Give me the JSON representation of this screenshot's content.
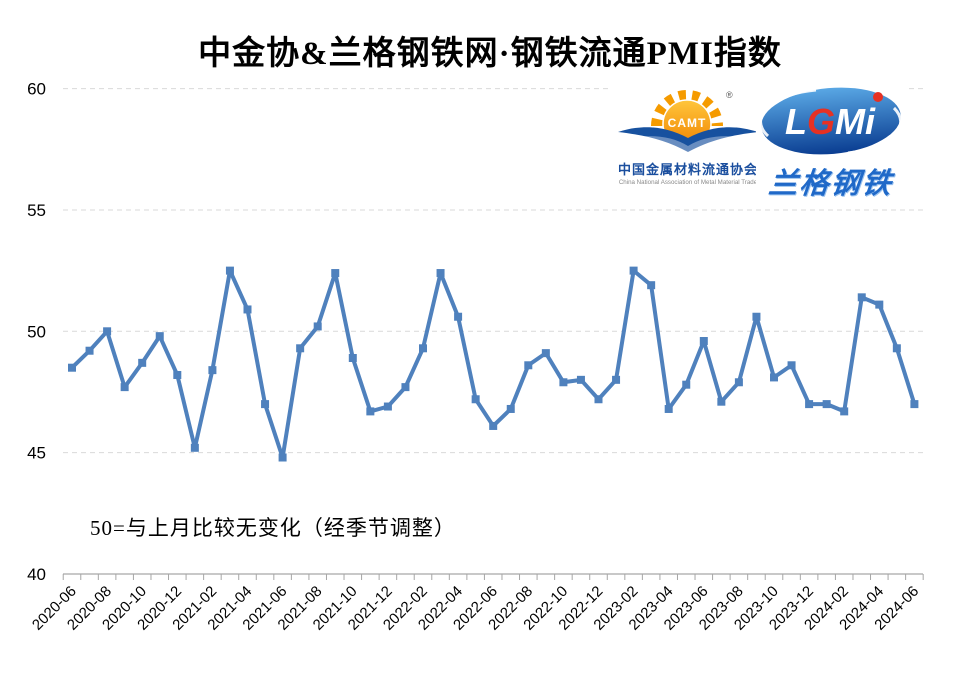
{
  "title": "中金协&兰格钢铁网·钢铁流通PMI指数",
  "annotation": "50=与上月比较无变化（经季节调整）",
  "logos": {
    "camt": {
      "abbr": "CAMT",
      "reg_mark": "®",
      "name_cn": "中国金属材料流通协会",
      "name_en": "China National Association of Metal Material Trade"
    },
    "lgmi": {
      "letter_l": "L",
      "letter_g": "G",
      "letter_mi": "Mi",
      "name_cn": "兰格钢铁"
    }
  },
  "colors": {
    "line": "#4F81BD",
    "grid": "#D9D9D9",
    "axis": "#A6A6A6",
    "text": "#000000"
  },
  "chart_data": {
    "type": "line",
    "title": "中金协&兰格钢铁网·钢铁流通PMI指数",
    "xlabel": "",
    "ylabel": "",
    "ylim": [
      40,
      60
    ],
    "y_ticks": [
      40,
      45,
      50,
      55,
      60
    ],
    "x_label_every": 2,
    "grid": "horizontal-dashed",
    "legend": "none",
    "marker": "square",
    "x": [
      "2020-06",
      "2020-07",
      "2020-08",
      "2020-09",
      "2020-10",
      "2020-11",
      "2020-12",
      "2021-01",
      "2021-02",
      "2021-03",
      "2021-04",
      "2021-05",
      "2021-06",
      "2021-07",
      "2021-08",
      "2021-09",
      "2021-10",
      "2021-11",
      "2021-12",
      "2022-01",
      "2022-02",
      "2022-03",
      "2022-04",
      "2022-05",
      "2022-06",
      "2022-07",
      "2022-08",
      "2022-09",
      "2022-10",
      "2022-11",
      "2022-12",
      "2023-01",
      "2023-02",
      "2023-03",
      "2023-04",
      "2023-05",
      "2023-06",
      "2023-07",
      "2023-08",
      "2023-09",
      "2023-10",
      "2023-11",
      "2023-12",
      "2024-01",
      "2024-02",
      "2024-03",
      "2024-04",
      "2024-05",
      "2024-06"
    ],
    "series": [
      {
        "name": "钢铁流通PMI指数",
        "values": [
          48.5,
          49.2,
          50.0,
          47.7,
          48.7,
          49.8,
          48.2,
          45.2,
          48.4,
          52.5,
          50.9,
          47.0,
          44.8,
          49.3,
          50.2,
          52.4,
          48.9,
          46.7,
          46.9,
          47.7,
          49.3,
          52.4,
          50.6,
          47.2,
          46.1,
          46.8,
          48.6,
          49.1,
          47.9,
          48.0,
          47.2,
          48.0,
          52.5,
          51.9,
          46.8,
          47.8,
          49.6,
          47.1,
          47.9,
          50.6,
          48.1,
          48.6,
          47.0,
          47.0,
          46.7,
          51.4,
          51.1,
          49.3,
          47.0
        ]
      }
    ]
  }
}
